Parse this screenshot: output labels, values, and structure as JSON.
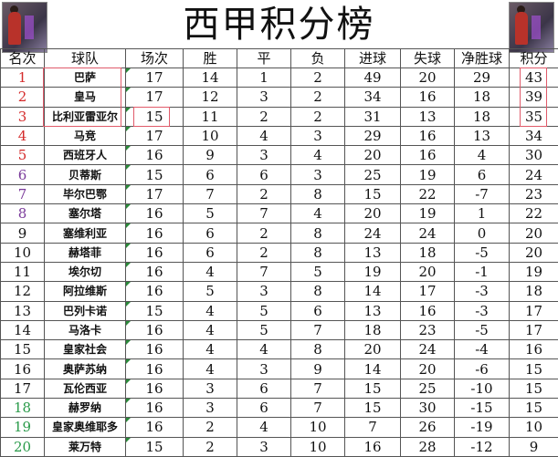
{
  "title": "西甲积分榜",
  "headers": [
    "名次",
    "球队",
    "场次",
    "胜",
    "平",
    "负",
    "进球",
    "失球",
    "净胜球",
    "积分"
  ],
  "colors": {
    "top": "#d42a2a",
    "europa": "#7a3a9a",
    "normal": "#111111",
    "relegation": "#2a9a4a",
    "highlight_box": "#e05a6a"
  },
  "rows": [
    [
      "1",
      "巴萨",
      "17",
      "14",
      "1",
      "2",
      "49",
      "20",
      "29",
      "43"
    ],
    [
      "2",
      "皇马",
      "17",
      "12",
      "3",
      "2",
      "34",
      "16",
      "18",
      "39"
    ],
    [
      "3",
      "比利亚雷亚尔",
      "15",
      "11",
      "2",
      "2",
      "31",
      "13",
      "18",
      "35"
    ],
    [
      "4",
      "马竞",
      "17",
      "10",
      "4",
      "3",
      "29",
      "16",
      "13",
      "34"
    ],
    [
      "5",
      "西班牙人",
      "16",
      "9",
      "3",
      "4",
      "20",
      "16",
      "4",
      "30"
    ],
    [
      "6",
      "贝蒂斯",
      "15",
      "6",
      "6",
      "3",
      "25",
      "19",
      "6",
      "24"
    ],
    [
      "7",
      "毕尔巴鄂",
      "17",
      "7",
      "2",
      "8",
      "15",
      "22",
      "-7",
      "23"
    ],
    [
      "8",
      "塞尔塔",
      "16",
      "5",
      "7",
      "4",
      "20",
      "19",
      "1",
      "22"
    ],
    [
      "9",
      "塞维利亚",
      "16",
      "6",
      "2",
      "8",
      "24",
      "24",
      "0",
      "20"
    ],
    [
      "10",
      "赫塔菲",
      "16",
      "6",
      "2",
      "8",
      "13",
      "18",
      "-5",
      "20"
    ],
    [
      "11",
      "埃尔切",
      "16",
      "4",
      "7",
      "5",
      "19",
      "20",
      "-1",
      "19"
    ],
    [
      "12",
      "阿拉维斯",
      "16",
      "5",
      "3",
      "8",
      "14",
      "17",
      "-3",
      "18"
    ],
    [
      "13",
      "巴列卡诺",
      "15",
      "4",
      "5",
      "6",
      "13",
      "16",
      "-3",
      "17"
    ],
    [
      "14",
      "马洛卡",
      "16",
      "4",
      "5",
      "7",
      "18",
      "23",
      "-5",
      "17"
    ],
    [
      "15",
      "皇家社会",
      "16",
      "4",
      "4",
      "8",
      "20",
      "24",
      "-4",
      "16"
    ],
    [
      "16",
      "奥萨苏纳",
      "16",
      "4",
      "3",
      "9",
      "14",
      "20",
      "-6",
      "15"
    ],
    [
      "17",
      "瓦伦西亚",
      "16",
      "3",
      "6",
      "7",
      "15",
      "25",
      "-10",
      "15"
    ],
    [
      "18",
      "赫罗纳",
      "16",
      "3",
      "6",
      "7",
      "15",
      "30",
      "-15",
      "15"
    ],
    [
      "19",
      "皇家奥维耶多",
      "16",
      "2",
      "4",
      "10",
      "7",
      "26",
      "-19",
      "10"
    ],
    [
      "20",
      "莱万特",
      "15",
      "2",
      "3",
      "10",
      "16",
      "28",
      "-12",
      "9"
    ]
  ]
}
